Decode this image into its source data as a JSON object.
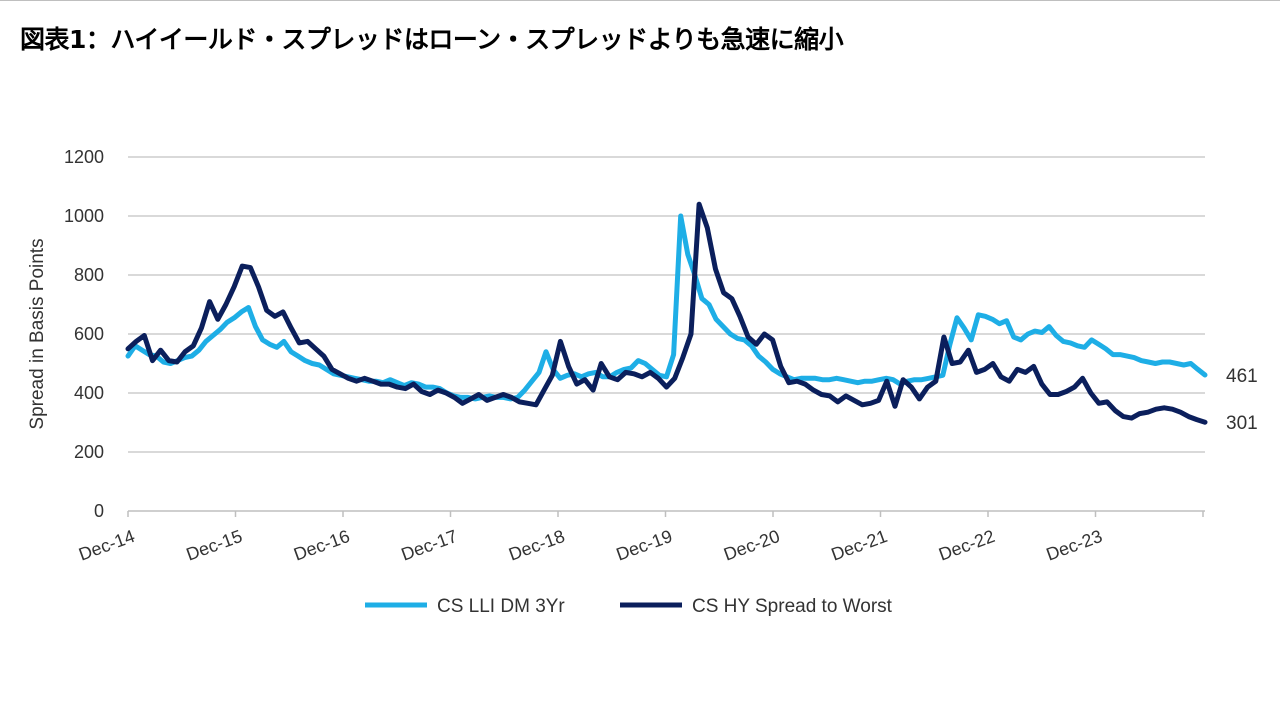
{
  "title": "図表1：ハイイールド・スプレッドはローン・スプレッドよりも急速に縮小",
  "chart_data": {
    "type": "line",
    "ylabel": "Spread  in Basis Points",
    "xlabel": "",
    "ylim": [
      0,
      1200
    ],
    "yticks": [
      "1200",
      "1000",
      "800",
      "600",
      "400",
      "200",
      "0"
    ],
    "ytick_values": [
      1200,
      1000,
      800,
      600,
      400,
      200,
      0
    ],
    "x_tick_labels": [
      "Dec-14",
      "Dec-15",
      "Dec-16",
      "Dec-17",
      "Dec-18",
      "Dec-19",
      "Dec-20",
      "Dec-21",
      "Dec-22",
      "Dec-23"
    ],
    "x_start": "Dec-14",
    "x_end": "Dec-24",
    "grid": true,
    "legend_position": "bottom",
    "series": [
      {
        "name": "CS LLI DM 3Yr",
        "color": "#1eaee6",
        "end_label": "461",
        "values": [
          525,
          560,
          545,
          530,
          525,
          505,
          500,
          510,
          520,
          525,
          545,
          575,
          595,
          615,
          640,
          655,
          675,
          690,
          625,
          580,
          565,
          555,
          575,
          540,
          525,
          510,
          500,
          495,
          480,
          465,
          460,
          455,
          450,
          445,
          440,
          440,
          435,
          445,
          435,
          425,
          435,
          430,
          420,
          420,
          415,
          400,
          390,
          385,
          385,
          380,
          385,
          390,
          385,
          385,
          380,
          385,
          410,
          440,
          470,
          540,
          480,
          450,
          460,
          465,
          455,
          465,
          470,
          455,
          455,
          470,
          480,
          485,
          510,
          500,
          480,
          460,
          455,
          530,
          1000,
          870,
          800,
          720,
          700,
          650,
          625,
          600,
          585,
          580,
          560,
          525,
          505,
          480,
          465,
          455,
          445,
          450,
          450,
          450,
          445,
          445,
          450,
          445,
          440,
          435,
          440,
          440,
          445,
          450,
          445,
          430,
          440,
          445,
          445,
          450,
          455,
          460,
          565,
          655,
          620,
          580,
          665,
          660,
          650,
          635,
          645,
          590,
          580,
          600,
          610,
          605,
          625,
          595,
          575,
          570,
          560,
          555,
          580,
          565,
          550,
          530,
          530,
          525,
          520,
          510,
          505,
          500,
          505,
          505,
          500,
          495,
          500,
          480,
          461
        ]
      },
      {
        "name": "CS HY Spread to Worst",
        "color": "#0b1f5c",
        "end_label": "301",
        "values": [
          550,
          575,
          595,
          510,
          545,
          510,
          505,
          540,
          560,
          620,
          710,
          650,
          700,
          760,
          830,
          825,
          760,
          680,
          660,
          675,
          620,
          570,
          575,
          550,
          525,
          480,
          465,
          450,
          440,
          450,
          440,
          430,
          430,
          420,
          415,
          430,
          405,
          395,
          410,
          400,
          385,
          365,
          380,
          395,
          375,
          385,
          395,
          385,
          370,
          365,
          360,
          410,
          460,
          575,
          490,
          430,
          445,
          410,
          500,
          455,
          445,
          470,
          465,
          455,
          470,
          450,
          420,
          450,
          520,
          600,
          1040,
          960,
          820,
          740,
          720,
          660,
          590,
          565,
          600,
          580,
          490,
          435,
          440,
          430,
          410,
          395,
          390,
          370,
          390,
          375,
          360,
          365,
          375,
          440,
          355,
          445,
          420,
          380,
          420,
          440,
          590,
          500,
          505,
          545,
          470,
          480,
          500,
          455,
          440,
          480,
          470,
          490,
          430,
          395,
          395,
          405,
          420,
          450,
          400,
          365,
          370,
          340,
          320,
          315,
          330,
          335,
          345,
          350,
          345,
          335,
          320,
          310,
          301
        ]
      }
    ]
  }
}
